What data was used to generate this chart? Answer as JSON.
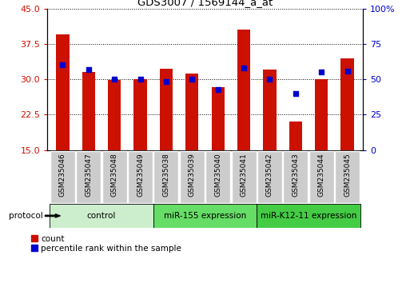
{
  "title": "GDS3007 / 1569144_a_at",
  "samples": [
    "GSM235046",
    "GSM235047",
    "GSM235048",
    "GSM235049",
    "GSM235038",
    "GSM235039",
    "GSM235040",
    "GSM235041",
    "GSM235042",
    "GSM235043",
    "GSM235044",
    "GSM235045"
  ],
  "red_values": [
    39.5,
    31.5,
    29.8,
    30.0,
    32.2,
    31.2,
    28.4,
    40.5,
    32.0,
    21.0,
    30.0,
    34.5
  ],
  "blue_values": [
    60.5,
    57.0,
    50.0,
    50.0,
    48.5,
    50.0,
    43.0,
    58.0,
    50.0,
    40.0,
    55.0,
    56.0
  ],
  "ylim_left": [
    15,
    45
  ],
  "ylim_right": [
    0,
    100
  ],
  "yticks_left": [
    15,
    22.5,
    30,
    37.5,
    45
  ],
  "yticks_right": [
    0,
    25,
    50,
    75,
    100
  ],
  "bar_color": "#cc1100",
  "dot_color": "#0000cc",
  "bg_color": "#ffffff",
  "sample_box_color": "#cccccc",
  "protocol_groups": [
    {
      "label": "control",
      "indices": [
        0,
        1,
        2,
        3
      ],
      "color": "#cceecc"
    },
    {
      "label": "miR-155 expression",
      "indices": [
        4,
        5,
        6,
        7
      ],
      "color": "#66dd66"
    },
    {
      "label": "miR-K12-11 expression",
      "indices": [
        8,
        9,
        10,
        11
      ],
      "color": "#44cc44"
    }
  ],
  "bar_width": 0.5,
  "legend_items": [
    {
      "label": "count",
      "color": "#cc1100"
    },
    {
      "label": "percentile rank within the sample",
      "color": "#0000cc"
    }
  ]
}
